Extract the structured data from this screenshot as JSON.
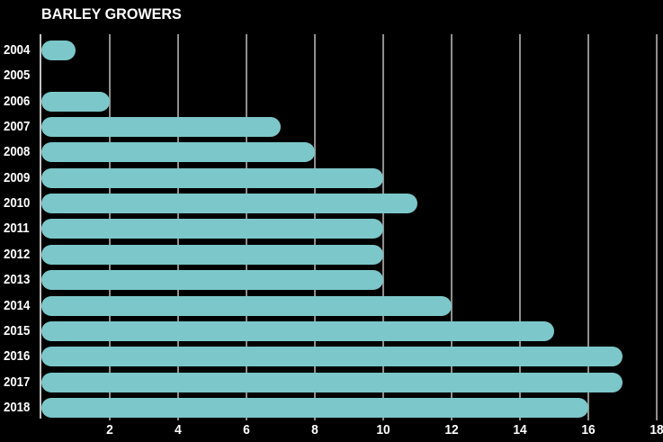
{
  "title": "BARLEY GROWERS",
  "colors": {
    "background": "#000000",
    "bar": "#7cc7c9",
    "gridline": "#8f8f8f",
    "axis_line": "#c2c2c2",
    "text": "#ffffff"
  },
  "chart_data": {
    "type": "bar",
    "orientation": "horizontal",
    "title": "BARLEY GROWERS",
    "categories": [
      "2004",
      "2005",
      "2006",
      "2007",
      "2008",
      "2009",
      "2010",
      "2011",
      "2012",
      "2013",
      "2014",
      "2015",
      "2016",
      "2017",
      "2018"
    ],
    "values": [
      1,
      0,
      2,
      7,
      8,
      10,
      11,
      10,
      10,
      10,
      12,
      15,
      17,
      17,
      16
    ],
    "xlabel": "",
    "ylabel": "",
    "xlim": [
      0,
      18
    ],
    "xticks": [
      2,
      4,
      6,
      8,
      10,
      12,
      14,
      16,
      18
    ],
    "grid": true,
    "legend": false
  }
}
